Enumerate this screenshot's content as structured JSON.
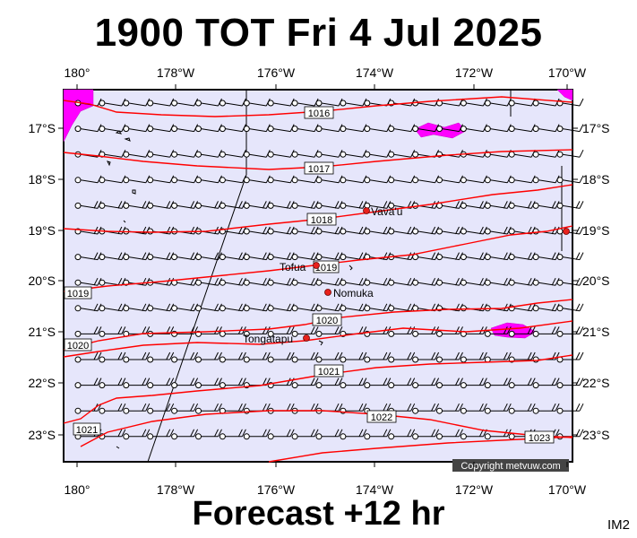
{
  "title": "1900 TOT Fri 4 Jul 2025",
  "footer": "Forecast +12 hr",
  "badge": "IM2",
  "copyright": "Copyright metvuw.com",
  "lon_labels": [
    "180°",
    "178°W",
    "176°W",
    "174°W",
    "172°W",
    "170°W"
  ],
  "lat_labels": [
    "17°S",
    "18°S",
    "19°S",
    "20°S",
    "21°S",
    "22°S",
    "23°S"
  ],
  "isobars": [
    "1016",
    "1017",
    "1018",
    "1019",
    "1020",
    "1021",
    "1022",
    "1023"
  ],
  "places": [
    "Vava'u",
    "Tofua",
    "Nomuka",
    "Tongatapu"
  ],
  "colors": {
    "ocean": "#e6e6fb",
    "isobar": "#ff0000",
    "rain": "#ff00ff",
    "place": "#e8211c"
  }
}
